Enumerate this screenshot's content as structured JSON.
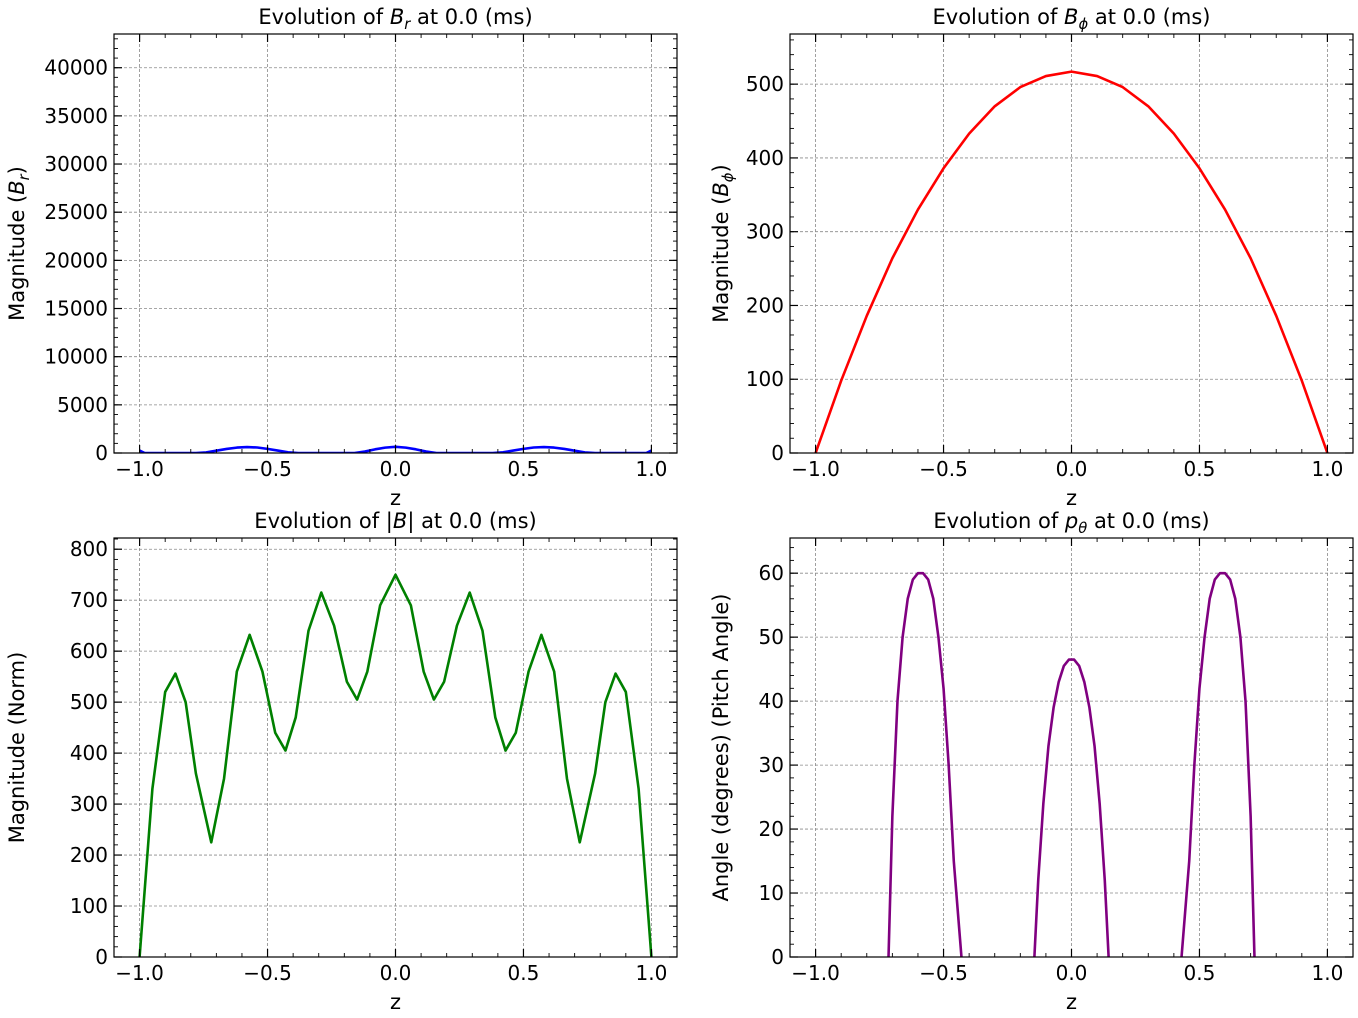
{
  "chart_data": [
    {
      "id": "br",
      "type": "line",
      "title": [
        "Evolution of ",
        "B",
        "r",
        " at 0.0 (ms)"
      ],
      "xlabel": "z",
      "ylabel": [
        "Magnitude (",
        "B",
        "r",
        ")"
      ],
      "xlim": [
        -1.1,
        1.1
      ],
      "ylim": [
        0,
        43500
      ],
      "xticks": [
        -1.0,
        -0.5,
        0.0,
        0.5,
        1.0
      ],
      "xtick_labels": [
        "−1.0",
        "−0.5",
        "0.0",
        "0.5",
        "1.0"
      ],
      "yticks": [
        0,
        5000,
        10000,
        15000,
        20000,
        25000,
        30000,
        35000,
        40000
      ],
      "ytick_labels": [
        "0",
        "5000",
        "10000",
        "15000",
        "20000",
        "25000",
        "30000",
        "35000",
        "40000"
      ],
      "grid": true,
      "color": "#0000ff",
      "series": [
        {
          "x": [
            -1.0,
            -0.98,
            -0.78,
            -0.74,
            -0.7,
            -0.66,
            -0.62,
            -0.58,
            -0.54,
            -0.5,
            -0.46,
            -0.42,
            -0.38,
            -0.16,
            -0.12,
            -0.08,
            -0.04,
            0.0,
            0.04,
            0.08,
            0.12,
            0.16,
            0.38,
            0.42,
            0.46,
            0.5,
            0.54,
            0.58,
            0.62,
            0.66,
            0.7,
            0.74,
            0.78,
            0.98,
            1.0
          ],
          "y": [
            250,
            0,
            0,
            60,
            240,
            420,
            560,
            620,
            570,
            430,
            250,
            70,
            0,
            0,
            150,
            380,
            560,
            640,
            560,
            380,
            150,
            0,
            0,
            70,
            250,
            430,
            570,
            620,
            560,
            420,
            240,
            60,
            0,
            0,
            250
          ]
        }
      ]
    },
    {
      "id": "bphi",
      "type": "line",
      "title": [
        "Evolution of ",
        "B",
        "ϕ",
        " at 0.0 (ms)"
      ],
      "xlabel": "z",
      "ylabel": [
        "Magnitude (",
        "B",
        "ϕ",
        ")"
      ],
      "xlim": [
        -1.1,
        1.1
      ],
      "ylim": [
        0,
        568
      ],
      "xticks": [
        -1.0,
        -0.5,
        0.0,
        0.5,
        1.0
      ],
      "xtick_labels": [
        "−1.0",
        "−0.5",
        "0.0",
        "0.5",
        "1.0"
      ],
      "yticks": [
        0,
        100,
        200,
        300,
        400,
        500
      ],
      "ytick_labels": [
        "0",
        "100",
        "200",
        "300",
        "400",
        "500"
      ],
      "grid": true,
      "color": "#ff0000",
      "series": [
        {
          "x": [
            -1.0,
            -0.9,
            -0.8,
            -0.7,
            -0.6,
            -0.5,
            -0.4,
            -0.3,
            -0.2,
            -0.1,
            0.0,
            0.1,
            0.2,
            0.3,
            0.4,
            0.5,
            0.6,
            0.7,
            0.8,
            0.9,
            1.0
          ],
          "y": [
            0,
            98,
            186,
            264,
            330,
            386,
            433,
            470,
            496,
            511,
            517,
            511,
            496,
            470,
            433,
            386,
            330,
            264,
            186,
            98,
            0
          ]
        }
      ]
    },
    {
      "id": "bnorm",
      "type": "line",
      "title": [
        "Evolution of |",
        "B",
        "",
        "| at 0.0 (ms)"
      ],
      "xlabel": "z",
      "ylabel": [
        "Magnitude (Norm)",
        "",
        "",
        ""
      ],
      "xlim": [
        -1.1,
        1.1
      ],
      "ylim": [
        0,
        822
      ],
      "xticks": [
        -1.0,
        -0.5,
        0.0,
        0.5,
        1.0
      ],
      "xtick_labels": [
        "−1.0",
        "−0.5",
        "0.0",
        "0.5",
        "1.0"
      ],
      "yticks": [
        0,
        100,
        200,
        300,
        400,
        500,
        600,
        700,
        800
      ],
      "ytick_labels": [
        "0",
        "100",
        "200",
        "300",
        "400",
        "500",
        "600",
        "700",
        "800"
      ],
      "grid": true,
      "color": "#008000",
      "series": [
        {
          "x": [
            -1.0,
            -0.95,
            -0.9,
            -0.86,
            -0.82,
            -0.78,
            -0.72,
            -0.67,
            -0.62,
            -0.57,
            -0.52,
            -0.47,
            -0.43,
            -0.39,
            -0.34,
            -0.29,
            -0.24,
            -0.19,
            -0.15,
            -0.11,
            -0.06,
            0.0,
            0.06,
            0.11,
            0.15,
            0.19,
            0.24,
            0.29,
            0.34,
            0.39,
            0.43,
            0.47,
            0.52,
            0.57,
            0.62,
            0.67,
            0.72,
            0.78,
            0.82,
            0.86,
            0.9,
            0.95,
            1.0
          ],
          "y": [
            0,
            330,
            520,
            556,
            500,
            360,
            225,
            350,
            560,
            632,
            560,
            440,
            405,
            470,
            640,
            715,
            650,
            540,
            505,
            560,
            690,
            750,
            690,
            560,
            505,
            540,
            650,
            715,
            640,
            470,
            405,
            440,
            560,
            632,
            560,
            350,
            225,
            360,
            500,
            556,
            520,
            330,
            0
          ]
        }
      ]
    },
    {
      "id": "ptheta",
      "type": "line",
      "title": [
        "Evolution of ",
        "p",
        "θ",
        " at 0.0 (ms)"
      ],
      "xlabel": "z",
      "ylabel": [
        "Angle (degrees) (Pitch Angle)",
        "",
        "",
        ""
      ],
      "xlim": [
        -1.1,
        1.1
      ],
      "ylim": [
        0,
        65.5
      ],
      "xticks": [
        -1.0,
        -0.5,
        0.0,
        0.5,
        1.0
      ],
      "xtick_labels": [
        "−1.0",
        "−0.5",
        "0.0",
        "0.5",
        "1.0"
      ],
      "yticks": [
        0,
        10,
        20,
        30,
        40,
        50,
        60
      ],
      "ytick_labels": [
        "0",
        "10",
        "20",
        "30",
        "40",
        "50",
        "60"
      ],
      "grid": true,
      "color": "#800080",
      "series": [
        {
          "x": [
            -0.715,
            -0.7,
            -0.68,
            -0.66,
            -0.64,
            -0.62,
            -0.6,
            -0.58,
            -0.56,
            -0.54,
            -0.52,
            -0.5,
            -0.48,
            -0.46,
            -0.43
          ],
          "y": [
            0,
            22,
            40,
            50,
            56,
            59,
            60,
            60,
            59,
            56,
            50,
            42,
            30,
            15,
            0
          ]
        },
        {
          "x": [
            -0.145,
            -0.13,
            -0.11,
            -0.09,
            -0.07,
            -0.05,
            -0.03,
            -0.01,
            0.0,
            0.01,
            0.03,
            0.05,
            0.07,
            0.09,
            0.11,
            0.13,
            0.145
          ],
          "y": [
            0,
            12,
            24,
            33,
            39,
            43,
            45.5,
            46.5,
            46.5,
            46.5,
            45.5,
            43,
            39,
            33,
            24,
            12,
            0
          ]
        },
        {
          "x": [
            0.43,
            0.46,
            0.48,
            0.5,
            0.52,
            0.54,
            0.56,
            0.58,
            0.6,
            0.62,
            0.64,
            0.66,
            0.68,
            0.7,
            0.715
          ],
          "y": [
            0,
            15,
            30,
            42,
            50,
            56,
            59,
            60,
            60,
            59,
            56,
            50,
            40,
            22,
            0
          ]
        }
      ]
    }
  ]
}
